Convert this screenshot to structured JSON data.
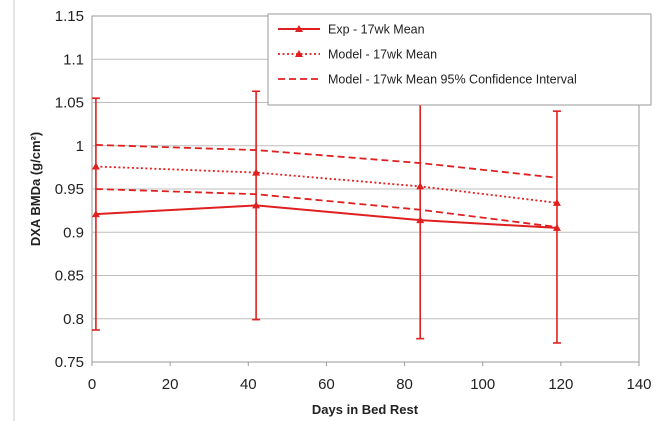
{
  "chart_data": {
    "type": "line",
    "title": "",
    "xlabel": "Days in Bed Rest",
    "ylabel": "DXA BMDa (g/cm²)",
    "xlim": [
      0,
      140
    ],
    "ylim": [
      0.75,
      1.15
    ],
    "x_ticks": [
      0,
      20,
      40,
      60,
      80,
      100,
      120,
      140
    ],
    "y_ticks": [
      0.75,
      0.8,
      0.85,
      0.9,
      0.95,
      1.0,
      1.05,
      1.1,
      1.15
    ],
    "x_tick_labels": [
      "0",
      "20",
      "40",
      "60",
      "80",
      "100",
      "120",
      "140"
    ],
    "y_tick_labels": [
      "0.75",
      "0.8",
      "0.85",
      "0.9",
      "0.95",
      "1",
      "1.05",
      "1.1",
      "1.15"
    ],
    "grid": "horizontal",
    "legend_position": "top-right",
    "series_color": "#e02020",
    "series": [
      {
        "name": "Exp - 17wk Mean",
        "style": "solid",
        "marker": "triangle",
        "x": [
          1,
          42,
          84,
          119
        ],
        "y": [
          0.921,
          0.931,
          0.914,
          0.905
        ],
        "error_low": [
          0.787,
          0.799,
          0.777,
          0.772
        ],
        "error_high": [
          1.055,
          1.063,
          1.053,
          1.04
        ]
      },
      {
        "name": "Model - 17wk Mean",
        "style": "dotted",
        "marker": "triangle",
        "x": [
          1,
          42,
          84,
          119
        ],
        "y": [
          0.976,
          0.969,
          0.953,
          0.934
        ]
      },
      {
        "name": "Model - 17wk Mean 95% Confidence Interval",
        "style": "dashed",
        "marker": "none",
        "x": [
          1,
          42,
          84,
          119
        ],
        "y": [
          1.001,
          0.995,
          0.98,
          0.963
        ]
      },
      {
        "name": "",
        "style": "dashed",
        "marker": "none",
        "x": [
          1,
          42,
          84,
          119
        ],
        "y": [
          0.95,
          0.944,
          0.926,
          0.906
        ]
      }
    ]
  }
}
